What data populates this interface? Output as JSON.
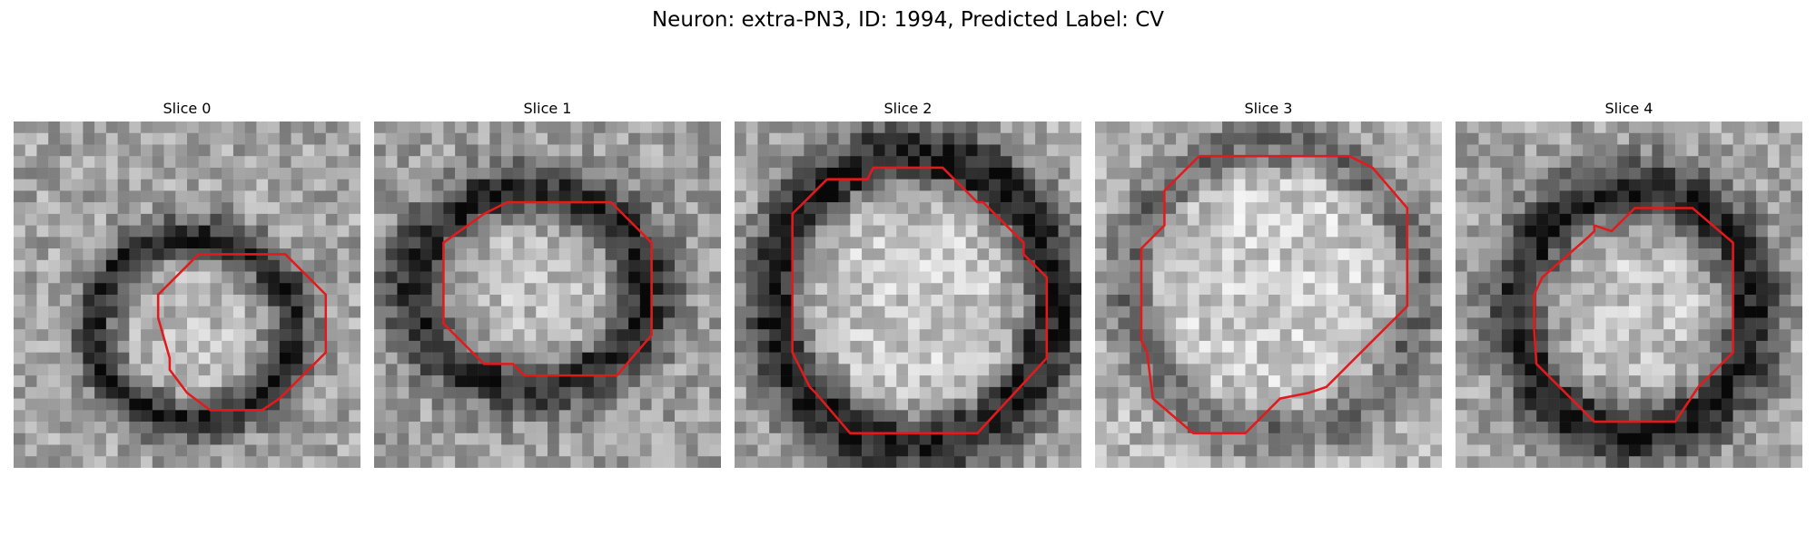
{
  "figure": {
    "title": "Neuron: extra-PN3, ID: 1994, Predicted Label: CV",
    "contour_color": "#e31a1c",
    "colormap": "gray"
  },
  "panels": [
    {
      "title": "Slice 0"
    },
    {
      "title": "Slice 1"
    },
    {
      "title": "Slice 2"
    },
    {
      "title": "Slice 3"
    },
    {
      "title": "Slice 4"
    }
  ]
}
